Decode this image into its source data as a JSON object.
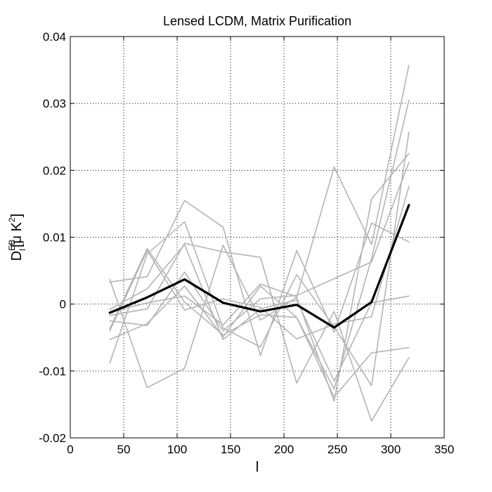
{
  "chart_data": {
    "type": "line",
    "title": "Lensed LCDM, Matrix Purification",
    "xlabel": "l",
    "ylabel": "D",
    "ylabel_sup": "EB",
    "ylabel_sub": "l",
    "ylabel_units": "[μ K",
    "ylabel_units_sup": "2",
    "ylabel_units_close": "]",
    "xlim": [
      0,
      350
    ],
    "ylim": [
      -0.02,
      0.04
    ],
    "xticks": [
      0,
      50,
      100,
      150,
      200,
      250,
      300,
      350
    ],
    "yticks": [
      -0.02,
      -0.01,
      0,
      0.01,
      0.02,
      0.03,
      0.04
    ],
    "xtick_labels": [
      "0",
      "50",
      "100",
      "150",
      "200",
      "250",
      "300",
      "350"
    ],
    "ytick_labels": [
      "-0.02",
      "-0.01",
      "0",
      "0.01",
      "0.02",
      "0.03",
      "0.04"
    ],
    "grid": true,
    "x": [
      37,
      72,
      107,
      143,
      178,
      212,
      247,
      282,
      317
    ],
    "series": [
      {
        "color": "#000000",
        "width": 3.2,
        "values": [
          -0.0013,
          0.001,
          0.0037,
          0.0002,
          -0.0011,
          -0.0001,
          -0.0035,
          0.0003,
          0.0148
        ]
      },
      {
        "color": "#b4b4b4",
        "width": 1.6,
        "values": [
          -0.0012,
          0.0002,
          0.0012,
          -0.0031,
          0.003,
          0.0011,
          0.0205,
          0.0089,
          0.0357
        ]
      },
      {
        "color": "#b4b4b4",
        "width": 1.6,
        "values": [
          0.0033,
          0.0041,
          0.0155,
          0.0115,
          -0.0077,
          0.008,
          -0.0042,
          0.0121,
          0.0093
        ]
      },
      {
        "color": "#b4b4b4",
        "width": 1.6,
        "values": [
          -0.0037,
          0.0083,
          0.0003,
          -0.0046,
          -0.0016,
          -0.002,
          -0.0127,
          0.0068,
          0.0305
        ]
      },
      {
        "color": "#b4b4b4",
        "width": 1.6,
        "values": [
          -0.0088,
          0.0075,
          0.0123,
          -0.0036,
          -0.0064,
          0.0044,
          -0.0034,
          -0.0122,
          0.0257
        ]
      },
      {
        "color": "#b4b4b4",
        "width": 1.6,
        "values": [
          0.0037,
          -0.0125,
          -0.0096,
          0.0088,
          -0.0024,
          0.001,
          -0.0145,
          0.0157,
          0.0225
        ]
      },
      {
        "color": "#b4b4b4",
        "width": 1.6,
        "values": [
          -0.0017,
          -0.0007,
          0.0091,
          0.0078,
          0.007,
          -0.0118,
          -0.0011,
          -0.0175,
          -0.008
        ]
      },
      {
        "color": "#b4b4b4",
        "width": 1.6,
        "values": [
          -0.0053,
          -0.0029,
          0.0027,
          -0.0049,
          0.0027,
          -0.002,
          -0.0139,
          -0.0073,
          -0.0065
        ]
      },
      {
        "color": "#b4b4b4",
        "width": 1.6,
        "values": [
          -0.0008,
          0.0023,
          0.0089,
          -0.0053,
          -0.0007,
          0.0006,
          -0.0115,
          0.0002,
          0.0012
        ]
      },
      {
        "color": "#b4b4b4",
        "width": 1.6,
        "values": [
          -0.0025,
          -0.0032,
          0.0048,
          -0.004,
          0.0008,
          0.0013,
          0.0038,
          0.0063,
          0.0212
        ]
      },
      {
        "color": "#b4b4b4",
        "width": 1.6,
        "values": [
          -0.004,
          0.008,
          -0.0009,
          0.0008,
          -0.0005,
          -0.0052,
          -0.003,
          -0.0019,
          0.0176
        ]
      }
    ]
  }
}
